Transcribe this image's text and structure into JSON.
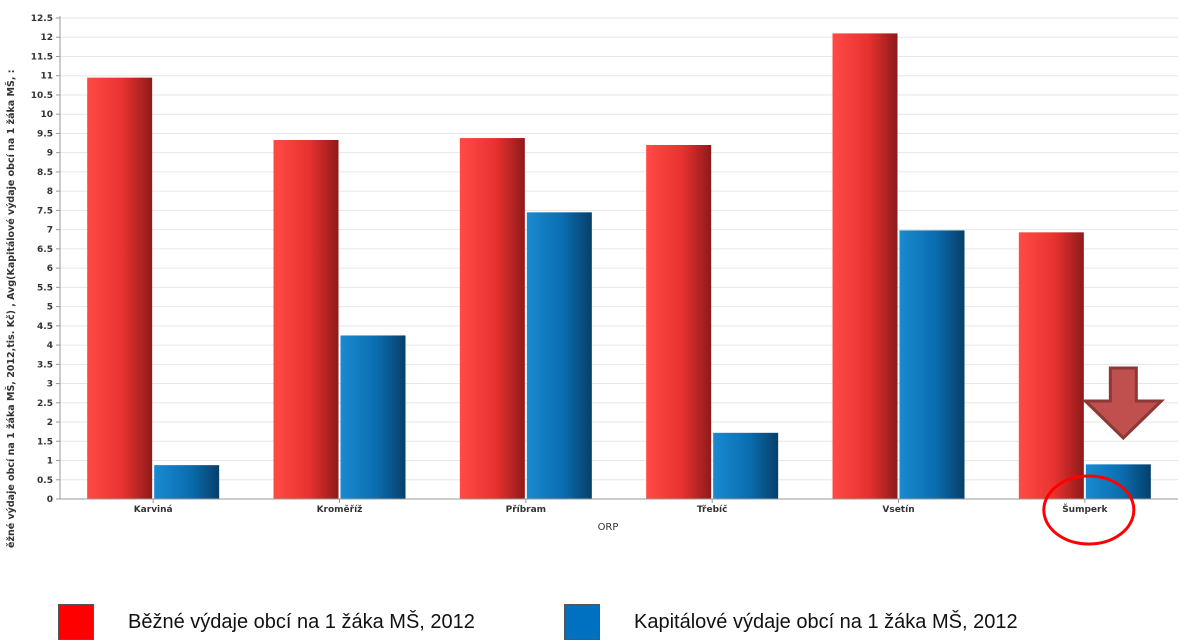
{
  "chart_data": {
    "type": "bar",
    "categories": [
      "Karviná",
      "Kroměříž",
      "Příbram",
      "Třebíč",
      "Vsetín",
      "Šumperk"
    ],
    "series": [
      {
        "name": "Běžné výdaje obcí na 1 žáka MŠ, 2012",
        "color": "#e8322f",
        "values": [
          10.95,
          9.33,
          9.38,
          9.2,
          12.1,
          6.93
        ]
      },
      {
        "name": "Kapitálové výdaje obcí na 1 žáka MŠ, 2012",
        "color": "#0a6eb0",
        "values": [
          0.88,
          4.25,
          7.45,
          1.72,
          6.98,
          0.9
        ]
      }
    ],
    "xlabel": "ORP",
    "ylabel": "ěžné výdaje obcí na 1 žáka MŠ, 2012,tis. Kč) , Avg(Kapitálové výdaje obcí na 1 žáka MŠ, :",
    "ylim": [
      0,
      12.5
    ],
    "yticks": [
      "0",
      "0.5",
      "1",
      "1.5",
      "2",
      "2.5",
      "3",
      "3.5",
      "4",
      "4.5",
      "5",
      "5.5",
      "6",
      "6.5",
      "7",
      "7.5",
      "8",
      "8.5",
      "9",
      "9.5",
      "10",
      "10.5",
      "11",
      "11.5",
      "12",
      "12.5"
    ],
    "grid": true,
    "annotations": [
      {
        "kind": "arrow-down",
        "color": "#c0504d",
        "target": "Šumperk"
      },
      {
        "kind": "circle",
        "color": "#ff0000",
        "target": "Šumperk"
      }
    ]
  }
}
